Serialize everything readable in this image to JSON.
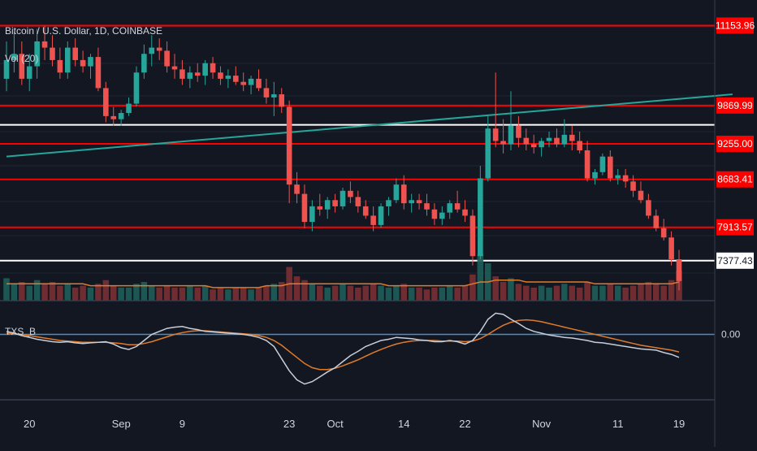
{
  "header": {
    "symbol_label": "Bitcoin / U.S. Dollar, 1D, COINBASE",
    "volume_label": "Vol (20)",
    "indicator_label": "TXS_B"
  },
  "colors": {
    "background": "#131722",
    "up": "#26a69a",
    "down": "#ef5350",
    "red_line": "#ff0000",
    "white_line": "#ffffff",
    "trend_line": "#26a69a",
    "orange": "#e07b2a",
    "oscillator_fast": "#c7ced9",
    "oscillator_zero": "#4a8fbf"
  },
  "chart_data": {
    "type": "candlestick",
    "price_axis": {
      "ylim": [
        6800,
        11500
      ],
      "labels": [
        {
          "value": 11153.96,
          "text": "11153.96",
          "style": "red"
        },
        {
          "value": 9869.99,
          "text": "9869.99",
          "style": "red"
        },
        {
          "value": 9255.0,
          "text": "9255.00",
          "style": "red"
        },
        {
          "value": 8683.41,
          "text": "8683.41",
          "style": "red"
        },
        {
          "value": 7913.57,
          "text": "7913.57",
          "style": "red"
        },
        {
          "value": 7377.43,
          "text": "7377.43",
          "style": "white"
        }
      ]
    },
    "horizontal_levels": [
      {
        "value": 11153.96,
        "kind": "red"
      },
      {
        "value": 9869.99,
        "kind": "red"
      },
      {
        "value": 9560,
        "kind": "white"
      },
      {
        "value": 9255.0,
        "kind": "red"
      },
      {
        "value": 8683.41,
        "kind": "red"
      },
      {
        "value": 7913.57,
        "kind": "red"
      },
      {
        "value": 7377.43,
        "kind": "white"
      }
    ],
    "trend_line": {
      "from": [
        0,
        9050
      ],
      "to": [
        95,
        10050
      ]
    },
    "x_axis": {
      "ticks": [
        {
          "index": 3,
          "label": "20"
        },
        {
          "index": 15,
          "label": "Sep"
        },
        {
          "index": 23,
          "label": "9"
        },
        {
          "index": 37,
          "label": "23"
        },
        {
          "index": 43,
          "label": "Oct"
        },
        {
          "index": 52,
          "label": "14"
        },
        {
          "index": 60,
          "label": "22"
        },
        {
          "index": 70,
          "label": "Nov"
        },
        {
          "index": 80,
          "label": "11"
        },
        {
          "index": 88,
          "label": "19"
        }
      ]
    },
    "candles": [
      [
        10300,
        10900,
        10100,
        10600
      ],
      [
        10600,
        11050,
        10400,
        10700
      ],
      [
        10700,
        10900,
        10200,
        10300
      ],
      [
        10300,
        10700,
        10100,
        10500
      ],
      [
        10500,
        11100,
        10300,
        10900
      ],
      [
        10900,
        11150,
        10600,
        10800
      ],
      [
        10800,
        11000,
        10500,
        10600
      ],
      [
        10600,
        10800,
        10300,
        10400
      ],
      [
        10400,
        10900,
        10300,
        10800
      ],
      [
        10800,
        10950,
        10500,
        10600
      ],
      [
        10600,
        10750,
        10400,
        10500
      ],
      [
        10500,
        10700,
        10300,
        10650
      ],
      [
        10650,
        10800,
        10100,
        10150
      ],
      [
        10150,
        10250,
        9600,
        9700
      ],
      [
        9700,
        9850,
        9550,
        9650
      ],
      [
        9650,
        9800,
        9550,
        9750
      ],
      [
        9750,
        10000,
        9700,
        9900
      ],
      [
        9900,
        10500,
        9850,
        10400
      ],
      [
        10400,
        10850,
        10300,
        10700
      ],
      [
        10700,
        11000,
        10500,
        10800
      ],
      [
        10800,
        10950,
        10600,
        10750
      ],
      [
        10750,
        10900,
        10400,
        10500
      ],
      [
        10500,
        10700,
        10300,
        10450
      ],
      [
        10450,
        10600,
        10200,
        10300
      ],
      [
        10300,
        10500,
        10150,
        10400
      ],
      [
        10400,
        10550,
        10250,
        10350
      ],
      [
        10350,
        10600,
        10200,
        10550
      ],
      [
        10550,
        10650,
        10300,
        10400
      ],
      [
        10400,
        10500,
        10200,
        10300
      ],
      [
        10300,
        10450,
        10150,
        10350
      ],
      [
        10350,
        10500,
        10200,
        10250
      ],
      [
        10250,
        10400,
        10100,
        10200
      ],
      [
        10200,
        10350,
        10050,
        10300
      ],
      [
        10300,
        10450,
        10100,
        10150
      ],
      [
        10150,
        10300,
        9900,
        10000
      ],
      [
        10000,
        10250,
        9700,
        10050
      ],
      [
        10050,
        10150,
        9750,
        9850
      ],
      [
        9850,
        9950,
        8300,
        8600
      ],
      [
        8600,
        8800,
        8300,
        8450
      ],
      [
        8450,
        8600,
        7900,
        8000
      ],
      [
        8000,
        8350,
        7850,
        8250
      ],
      [
        8250,
        8450,
        8100,
        8200
      ],
      [
        8200,
        8400,
        8050,
        8350
      ],
      [
        8350,
        8450,
        8150,
        8250
      ],
      [
        8250,
        8550,
        8200,
        8500
      ],
      [
        8500,
        8650,
        8300,
        8400
      ],
      [
        8400,
        8500,
        8150,
        8250
      ],
      [
        8250,
        8350,
        8050,
        8100
      ],
      [
        8100,
        8250,
        7850,
        7950
      ],
      [
        7950,
        8300,
        7900,
        8250
      ],
      [
        8250,
        8400,
        8100,
        8350
      ],
      [
        8350,
        8700,
        8300,
        8600
      ],
      [
        8600,
        8750,
        8200,
        8300
      ],
      [
        8300,
        8450,
        8150,
        8350
      ],
      [
        8350,
        8450,
        8200,
        8300
      ],
      [
        8300,
        8450,
        8100,
        8200
      ],
      [
        8200,
        8300,
        7950,
        8050
      ],
      [
        8050,
        8250,
        7950,
        8150
      ],
      [
        8150,
        8350,
        8050,
        8300
      ],
      [
        8300,
        8500,
        8150,
        8200
      ],
      [
        8200,
        8350,
        8000,
        8100
      ],
      [
        8100,
        8200,
        7300,
        7450
      ],
      [
        7450,
        8900,
        7400,
        8700
      ],
      [
        8700,
        9700,
        8650,
        9500
      ],
      [
        9500,
        10400,
        9200,
        9300
      ],
      [
        9300,
        9650,
        9100,
        9250
      ],
      [
        9250,
        10100,
        9150,
        9550
      ],
      [
        9550,
        9700,
        9200,
        9350
      ],
      [
        9350,
        9500,
        9150,
        9250
      ],
      [
        9250,
        9400,
        9100,
        9200
      ],
      [
        9200,
        9350,
        9050,
        9300
      ],
      [
        9300,
        9450,
        9200,
        9350
      ],
      [
        9350,
        9500,
        9200,
        9250
      ],
      [
        9250,
        9650,
        9200,
        9400
      ],
      [
        9400,
        9550,
        9150,
        9300
      ],
      [
        9300,
        9450,
        9100,
        9150
      ],
      [
        9150,
        9300,
        8650,
        8700
      ],
      [
        8700,
        8850,
        8600,
        8800
      ],
      [
        8800,
        9100,
        8750,
        9050
      ],
      [
        9050,
        9150,
        8650,
        8700
      ],
      [
        8700,
        8850,
        8600,
        8750
      ],
      [
        8750,
        8850,
        8550,
        8650
      ],
      [
        8650,
        8750,
        8400,
        8500
      ],
      [
        8500,
        8650,
        8300,
        8350
      ],
      [
        8350,
        8450,
        8050,
        8100
      ],
      [
        8100,
        8200,
        7850,
        7900
      ],
      [
        7900,
        8050,
        7700,
        7750
      ],
      [
        7750,
        7850,
        7300,
        7400
      ],
      [
        7400,
        7550,
        6900,
        7050
      ]
    ],
    "volumes": [
      12,
      9,
      10,
      8,
      11,
      9,
      10,
      8,
      9,
      7,
      8,
      7,
      9,
      11,
      8,
      7,
      7,
      9,
      10,
      8,
      7,
      8,
      7,
      7,
      8,
      7,
      8,
      6,
      7,
      6,
      7,
      7,
      6,
      7,
      8,
      9,
      10,
      18,
      13,
      11,
      9,
      8,
      7,
      8,
      9,
      8,
      7,
      8,
      9,
      8,
      7,
      8,
      9,
      7,
      7,
      6,
      7,
      7,
      8,
      7,
      8,
      14,
      25,
      20,
      13,
      10,
      12,
      9,
      8,
      7,
      8,
      7,
      8,
      9,
      8,
      7,
      10,
      8,
      8,
      9,
      8,
      7,
      8,
      9,
      10,
      9,
      8,
      11,
      16
    ],
    "volume_ma": [
      9,
      9,
      9,
      9,
      9,
      9,
      9,
      9,
      9,
      9,
      9,
      8,
      8,
      8,
      8,
      8,
      8,
      8,
      8,
      8,
      8,
      8,
      8,
      8,
      8,
      8,
      8,
      7,
      7,
      7,
      7,
      7,
      7,
      7,
      8,
      8,
      8,
      9,
      9,
      9,
      9,
      9,
      9,
      9,
      9,
      9,
      9,
      9,
      9,
      9,
      8,
      8,
      8,
      8,
      8,
      8,
      8,
      8,
      8,
      8,
      8,
      9,
      10,
      10,
      11,
      11,
      11,
      11,
      10,
      10,
      10,
      10,
      10,
      10,
      10,
      10,
      10,
      9,
      9,
      9,
      9,
      9,
      9,
      9,
      9,
      9,
      9,
      9,
      10
    ],
    "oscillator": {
      "ylim": [
        -1.0,
        0.45
      ],
      "zero_label": "0.00",
      "fast": [
        0.05,
        0.02,
        -0.02,
        -0.05,
        -0.08,
        -0.1,
        -0.12,
        -0.13,
        -0.12,
        -0.14,
        -0.15,
        -0.14,
        -0.13,
        -0.12,
        -0.16,
        -0.22,
        -0.25,
        -0.2,
        -0.1,
        0.0,
        0.05,
        0.1,
        0.12,
        0.13,
        0.1,
        0.08,
        0.05,
        0.04,
        0.03,
        0.02,
        0.01,
        0.0,
        -0.02,
        -0.05,
        -0.1,
        -0.2,
        -0.4,
        -0.6,
        -0.75,
        -0.82,
        -0.78,
        -0.7,
        -0.62,
        -0.55,
        -0.45,
        -0.35,
        -0.28,
        -0.2,
        -0.15,
        -0.1,
        -0.08,
        -0.05,
        -0.06,
        -0.07,
        -0.09,
        -0.1,
        -0.12,
        -0.12,
        -0.1,
        -0.12,
        -0.16,
        -0.1,
        0.05,
        0.25,
        0.35,
        0.33,
        0.25,
        0.18,
        0.1,
        0.05,
        0.02,
        -0.01,
        -0.03,
        -0.05,
        -0.06,
        -0.08,
        -0.1,
        -0.13,
        -0.14,
        -0.16,
        -0.18,
        -0.2,
        -0.22,
        -0.24,
        -0.25,
        -0.26,
        -0.3,
        -0.33,
        -0.38
      ],
      "slow": [
        0.02,
        0.01,
        0.0,
        -0.02,
        -0.04,
        -0.06,
        -0.08,
        -0.1,
        -0.11,
        -0.12,
        -0.13,
        -0.13,
        -0.13,
        -0.13,
        -0.14,
        -0.15,
        -0.17,
        -0.17,
        -0.15,
        -0.12,
        -0.08,
        -0.04,
        0.0,
        0.03,
        0.05,
        0.06,
        0.06,
        0.05,
        0.04,
        0.03,
        0.02,
        0.01,
        0.0,
        -0.02,
        -0.05,
        -0.1,
        -0.18,
        -0.28,
        -0.38,
        -0.48,
        -0.55,
        -0.58,
        -0.58,
        -0.56,
        -0.52,
        -0.47,
        -0.42,
        -0.36,
        -0.3,
        -0.25,
        -0.2,
        -0.16,
        -0.13,
        -0.11,
        -0.1,
        -0.1,
        -0.1,
        -0.11,
        -0.11,
        -0.11,
        -0.12,
        -0.11,
        -0.07,
        0.0,
        0.08,
        0.15,
        0.2,
        0.23,
        0.24,
        0.23,
        0.21,
        0.18,
        0.15,
        0.12,
        0.09,
        0.06,
        0.03,
        0.0,
        -0.03,
        -0.06,
        -0.09,
        -0.12,
        -0.15,
        -0.18,
        -0.2,
        -0.22,
        -0.24,
        -0.26,
        -0.29
      ]
    }
  }
}
